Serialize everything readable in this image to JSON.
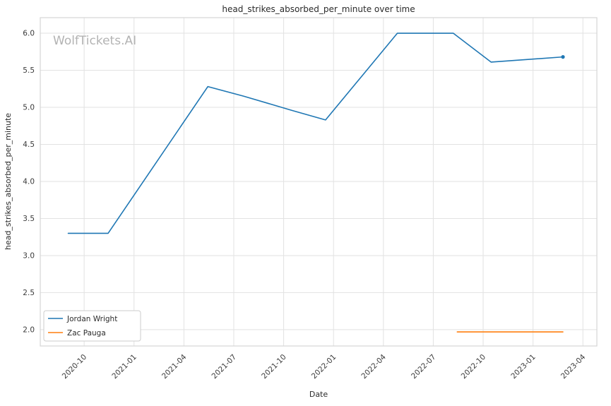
{
  "watermark": "WolfTickets.AI",
  "chart_data": {
    "type": "line",
    "title": "head_strikes_absorbed_per_minute over time",
    "xlabel": "Date",
    "ylabel": "head_strikes_absorbed_per_minute",
    "x_ticks": [
      2020.75,
      2021.0,
      2021.25,
      2021.5,
      2021.75,
      2022.0,
      2022.25,
      2022.5,
      2022.75,
      2023.0,
      2023.25
    ],
    "x_tick_labels": [
      "2020-10",
      "2021-01",
      "2021-04",
      "2021-07",
      "2021-10",
      "2022-01",
      "2022-04",
      "2022-07",
      "2022-10",
      "2023-01",
      "2023-04"
    ],
    "y_ticks": [
      2.0,
      2.5,
      3.0,
      3.5,
      4.0,
      4.5,
      5.0,
      5.5,
      6.0
    ],
    "y_tick_labels": [
      "2.0",
      "2.5",
      "3.0",
      "3.5",
      "4.0",
      "4.5",
      "5.0",
      "5.5",
      "6.0"
    ],
    "xlim": [
      2020.53,
      2023.32
    ],
    "ylim": [
      1.78,
      6.21
    ],
    "grid": true,
    "legend_position": "lower left",
    "series": [
      {
        "name": "Jordan Wright",
        "color": "#1f77b4",
        "x": [
          2020.67,
          2020.87,
          2021.37,
          2021.55,
          2021.79,
          2021.96,
          2022.32,
          2022.6,
          2022.79,
          2023.15
        ],
        "y": [
          3.3,
          3.3,
          5.28,
          5.15,
          4.96,
          4.83,
          6.0,
          6.0,
          5.61,
          5.68
        ],
        "end_marker": true
      },
      {
        "name": "Zac Pauga",
        "color": "#ff7f0e",
        "x": [
          2022.62,
          2023.15
        ],
        "y": [
          1.97,
          1.97
        ],
        "end_marker": false
      }
    ]
  }
}
